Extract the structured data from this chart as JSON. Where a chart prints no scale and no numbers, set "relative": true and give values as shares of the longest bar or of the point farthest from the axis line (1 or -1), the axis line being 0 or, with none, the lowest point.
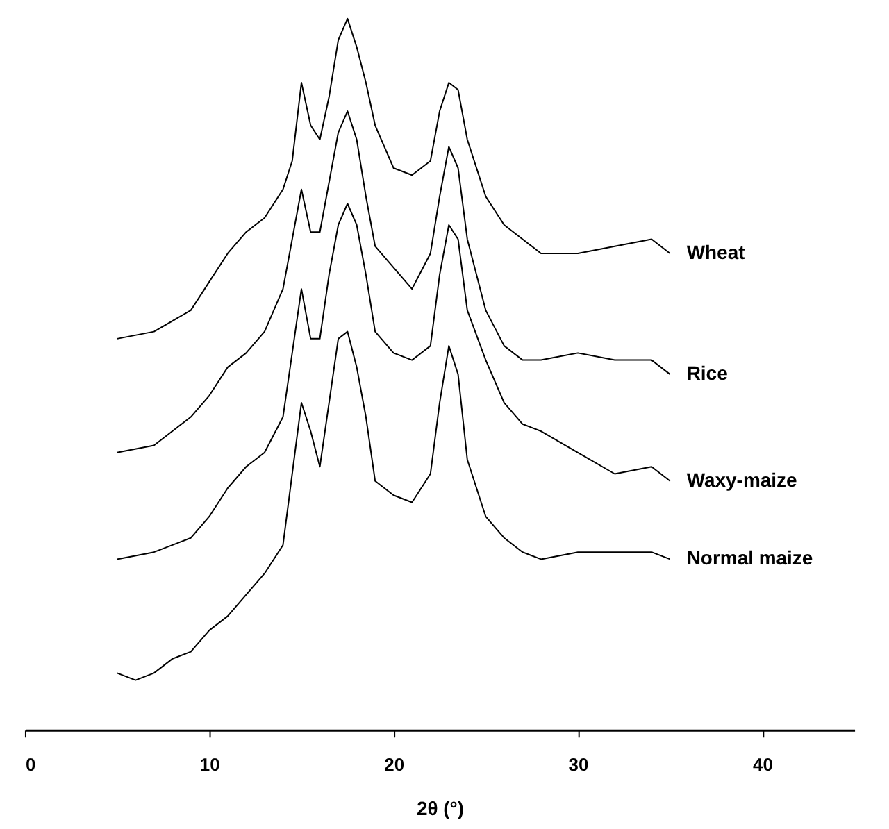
{
  "chart_data": {
    "type": "line",
    "relative": true,
    "xlabel": "2θ (°)",
    "xlim": [
      0,
      45
    ],
    "xticks": [
      0,
      10,
      20,
      30,
      40
    ],
    "grid": false,
    "legend": false,
    "marker": "none",
    "line_style": "solid",
    "tick_labels": "x",
    "series": [
      {
        "name": "Wheat",
        "color": "#000000",
        "x": [
          5,
          7,
          9,
          10,
          11,
          12,
          13,
          14,
          14.5,
          15,
          15.5,
          16,
          16.5,
          17,
          17.5,
          18,
          18.5,
          19,
          20,
          21,
          22,
          22.5,
          23,
          23.5,
          24,
          25,
          26,
          27,
          28,
          30,
          32,
          34,
          35
        ],
        "values": [
          0.55,
          0.56,
          0.59,
          0.63,
          0.67,
          0.7,
          0.72,
          0.76,
          0.8,
          0.91,
          0.85,
          0.83,
          0.89,
          0.97,
          1.0,
          0.96,
          0.91,
          0.85,
          0.79,
          0.78,
          0.8,
          0.87,
          0.91,
          0.9,
          0.83,
          0.75,
          0.71,
          0.69,
          0.67,
          0.67,
          0.68,
          0.69,
          0.67
        ]
      },
      {
        "name": "Rice",
        "color": "#000000",
        "x": [
          5,
          7,
          9,
          10,
          11,
          12,
          13,
          14,
          14.5,
          15,
          15.5,
          16,
          16.5,
          17,
          17.5,
          18,
          18.5,
          19,
          20,
          21,
          22,
          22.5,
          23,
          23.5,
          24,
          25,
          26,
          27,
          28,
          30,
          32,
          34,
          35
        ],
        "values": [
          0.39,
          0.4,
          0.44,
          0.47,
          0.51,
          0.53,
          0.56,
          0.62,
          0.69,
          0.76,
          0.7,
          0.7,
          0.77,
          0.84,
          0.87,
          0.83,
          0.75,
          0.68,
          0.65,
          0.62,
          0.67,
          0.75,
          0.82,
          0.79,
          0.69,
          0.59,
          0.54,
          0.52,
          0.52,
          0.53,
          0.52,
          0.52,
          0.5
        ]
      },
      {
        "name": "Waxy-maize",
        "color": "#000000",
        "x": [
          5,
          7,
          9,
          10,
          11,
          12,
          13,
          14,
          14.5,
          15,
          15.5,
          16,
          16.5,
          17,
          17.5,
          18,
          18.5,
          19,
          20,
          21,
          22,
          22.5,
          23,
          23.5,
          24,
          25,
          26,
          27,
          28,
          30,
          32,
          34,
          35
        ],
        "values": [
          0.24,
          0.25,
          0.27,
          0.3,
          0.34,
          0.37,
          0.39,
          0.44,
          0.53,
          0.62,
          0.55,
          0.55,
          0.64,
          0.71,
          0.74,
          0.71,
          0.64,
          0.56,
          0.53,
          0.52,
          0.54,
          0.64,
          0.71,
          0.69,
          0.59,
          0.52,
          0.46,
          0.43,
          0.42,
          0.39,
          0.36,
          0.37,
          0.35
        ]
      },
      {
        "name": "Normal maize",
        "color": "#000000",
        "x": [
          5,
          6,
          7,
          8,
          9,
          10,
          11,
          12,
          13,
          14,
          14.5,
          15,
          15.5,
          16,
          16.5,
          17,
          17.5,
          18,
          18.5,
          19,
          20,
          21,
          22,
          22.5,
          23,
          23.5,
          24,
          25,
          26,
          27,
          28,
          30,
          32,
          34,
          35
        ],
        "values": [
          0.08,
          0.07,
          0.08,
          0.1,
          0.11,
          0.14,
          0.16,
          0.19,
          0.22,
          0.26,
          0.36,
          0.46,
          0.42,
          0.37,
          0.46,
          0.55,
          0.56,
          0.51,
          0.44,
          0.35,
          0.33,
          0.32,
          0.36,
          0.46,
          0.54,
          0.5,
          0.38,
          0.3,
          0.27,
          0.25,
          0.24,
          0.25,
          0.25,
          0.25,
          0.24
        ]
      }
    ]
  }
}
